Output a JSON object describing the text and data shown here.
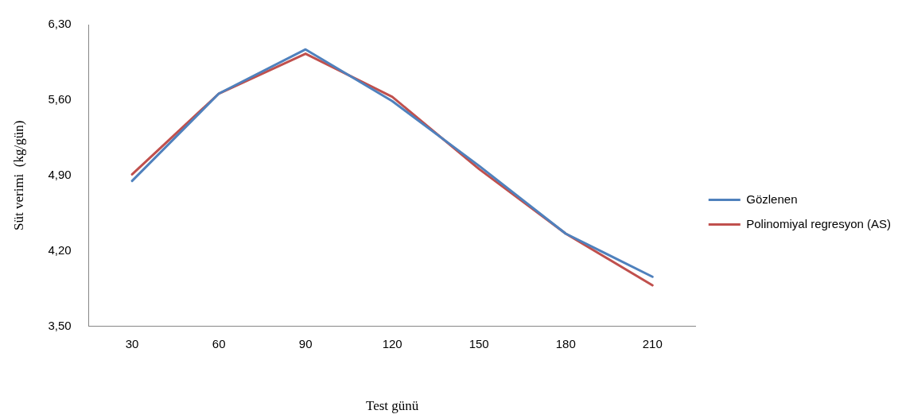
{
  "chart_data": {
    "type": "line",
    "xlabel": "Test günü",
    "ylabel": "Süt verimi  (kg/gün)",
    "categories": [
      "30",
      "60",
      "90",
      "120",
      "150",
      "180",
      "210"
    ],
    "series": [
      {
        "name": "Gözlenen",
        "color": "#4f81bd",
        "values": [
          4.85,
          5.66,
          6.07,
          5.59,
          4.99,
          4.36,
          3.96
        ]
      },
      {
        "name": "Polinomiyal regresyon (AS)",
        "color": "#c0504d",
        "values": [
          4.91,
          5.66,
          6.03,
          5.63,
          4.96,
          4.36,
          3.88
        ]
      }
    ],
    "ylim": [
      3.5,
      6.3
    ],
    "yticks": [
      {
        "value": 3.5,
        "label": "3,50"
      },
      {
        "value": 4.2,
        "label": "4,20"
      },
      {
        "value": 4.9,
        "label": "4,90"
      },
      {
        "value": 5.6,
        "label": "5,60"
      },
      {
        "value": 6.3,
        "label": "6,30"
      }
    ],
    "grid": false,
    "legend": "right",
    "marker": "none",
    "line_style": "solid"
  }
}
